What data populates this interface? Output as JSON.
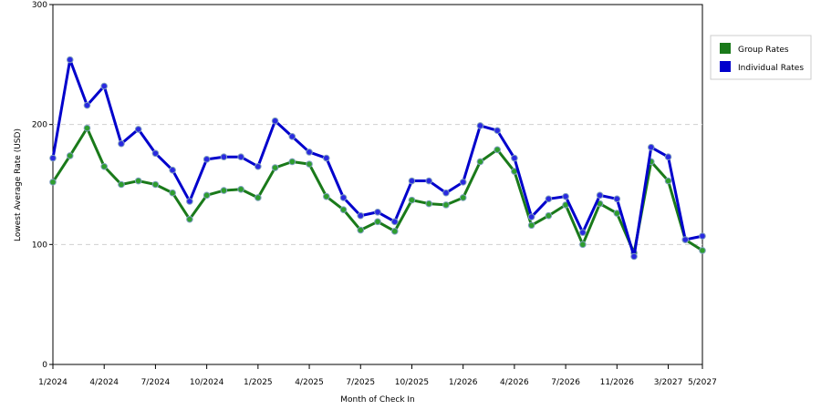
{
  "chart_data": {
    "type": "line",
    "title": "",
    "xlabel": "Month of Check In",
    "ylabel": "Lowest Average Rate (USD)",
    "ylim": [
      0,
      300
    ],
    "y_ticks": [
      0,
      100,
      200,
      300
    ],
    "gridlines": "dashed horizontal at 100 and 200",
    "legend_position": "top-right, outside plot",
    "x": [
      "1/2024",
      "2/2024",
      "3/2024",
      "4/2024",
      "5/2024",
      "6/2024",
      "7/2024",
      "8/2024",
      "9/2024",
      "10/2024",
      "11/2024",
      "12/2024",
      "1/2025",
      "2/2025",
      "3/2025",
      "4/2025",
      "5/2025",
      "6/2025",
      "7/2025",
      "8/2025",
      "9/2025",
      "10/2025",
      "11/2025",
      "12/2025",
      "1/2026",
      "2/2026",
      "3/2026",
      "4/2026",
      "5/2026",
      "6/2026",
      "7/2026",
      "8/2026",
      "9/2026",
      "11/2026",
      "12/2026",
      "2/2027",
      "3/2027",
      "4/2027",
      "5/2027"
    ],
    "x_tick_labels": [
      {
        "index": 0,
        "label": "1/2024"
      },
      {
        "index": 3,
        "label": "4/2024"
      },
      {
        "index": 6,
        "label": "7/2024"
      },
      {
        "index": 9,
        "label": "10/2024"
      },
      {
        "index": 12,
        "label": "1/2025"
      },
      {
        "index": 15,
        "label": "4/2025"
      },
      {
        "index": 18,
        "label": "7/2025"
      },
      {
        "index": 21,
        "label": "10/2025"
      },
      {
        "index": 24,
        "label": "1/2026"
      },
      {
        "index": 27,
        "label": "4/2026"
      },
      {
        "index": 30,
        "label": "7/2026"
      },
      {
        "index": 33,
        "label": "11/2026"
      },
      {
        "index": 36,
        "label": "3/2027"
      },
      {
        "index": 38,
        "label": "5/2027"
      }
    ],
    "series": [
      {
        "name": "Group Rates",
        "color": "#1a7a1a",
        "marker_color": "#2e9e2e",
        "values": [
          152,
          174,
          197,
          165,
          150,
          153,
          150,
          143,
          121,
          141,
          145,
          146,
          139,
          164,
          169,
          167,
          140,
          129,
          112,
          119,
          111,
          137,
          134,
          133,
          139,
          169,
          179,
          161,
          116,
          124,
          133,
          100,
          134,
          126,
          93,
          169,
          153,
          104,
          95
        ]
      },
      {
        "name": "Individual Rates",
        "color": "#0000cc",
        "marker_color": "#2a2ae0",
        "values": [
          172,
          254,
          216,
          232,
          184,
          196,
          176,
          162,
          136,
          171,
          173,
          173,
          165,
          203,
          190,
          177,
          172,
          139,
          124,
          127,
          119,
          153,
          153,
          143,
          152,
          199,
          195,
          172,
          123,
          138,
          140,
          110,
          141,
          138,
          90,
          181,
          173,
          104,
          107
        ]
      }
    ]
  }
}
